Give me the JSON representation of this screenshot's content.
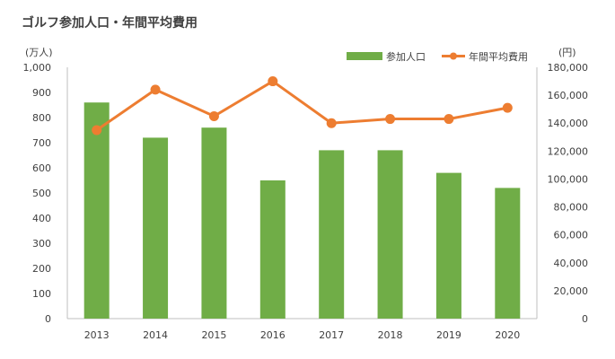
{
  "chart_data": {
    "type": "bar",
    "title": "ゴルフ参加人口・年間平均費用",
    "categories": [
      "2013",
      "2014",
      "2015",
      "2016",
      "2017",
      "2018",
      "2019",
      "2020"
    ],
    "series": [
      {
        "name": "参加人口",
        "type": "bar",
        "axis": "left",
        "color": "#70ad47",
        "values": [
          860,
          720,
          760,
          550,
          670,
          670,
          580,
          520
        ]
      },
      {
        "name": "年間平均費用",
        "type": "line",
        "axis": "right",
        "color": "#ed7d31",
        "values": [
          135000,
          164000,
          145000,
          170000,
          140000,
          143000,
          143000,
          151000
        ]
      }
    ],
    "y_left": {
      "unit": "(万人)",
      "ylim": [
        0,
        1000
      ],
      "ticks": [
        "0",
        "100",
        "200",
        "300",
        "400",
        "500",
        "600",
        "700",
        "800",
        "900",
        "1,000"
      ]
    },
    "y_right": {
      "unit": "(円)",
      "ylim": [
        0,
        180000
      ],
      "ticks": [
        "0",
        "20,000",
        "40,000",
        "60,000",
        "80,000",
        "100,000",
        "120,000",
        "140,000",
        "160,000",
        "180,000"
      ]
    },
    "grid": false,
    "legend_position": "top-right"
  }
}
